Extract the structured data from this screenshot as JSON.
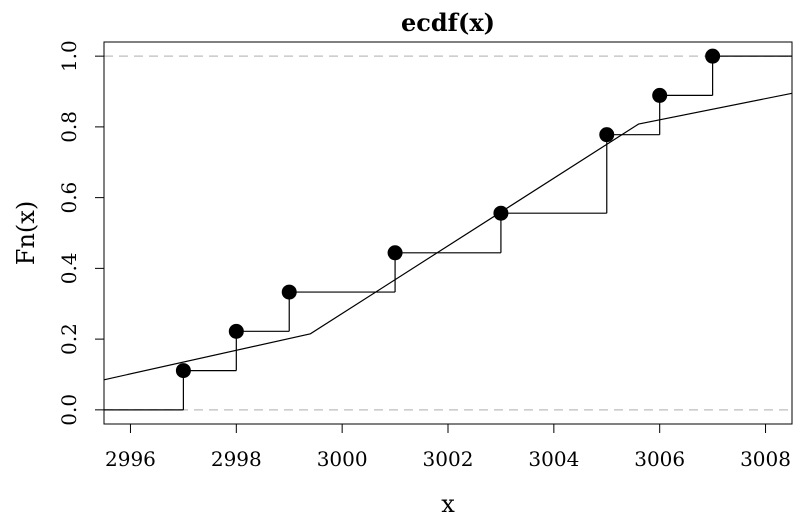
{
  "chart_data": {
    "type": "line",
    "title": "ecdf(x)",
    "xlabel": "x",
    "ylabel": "Fn(x)",
    "xlim": [
      2995.5,
      3008.5
    ],
    "ylim": [
      -0.04,
      1.04
    ],
    "x_ticks": [
      2996,
      2998,
      3000,
      3002,
      3004,
      3006,
      3008
    ],
    "y_ticks": [
      0.0,
      0.2,
      0.4,
      0.6,
      0.8,
      1.0
    ],
    "x_tick_labels": [
      "2996",
      "2998",
      "3000",
      "3002",
      "3004",
      "3006",
      "3008"
    ],
    "y_tick_labels": [
      "0.0",
      "0.2",
      "0.4",
      "0.6",
      "0.8",
      "1.0"
    ],
    "reference_lines_y": [
      0,
      1
    ],
    "series": [
      {
        "kind": "step",
        "x": [
          2997,
          2998,
          2999,
          3001,
          3003,
          3005,
          3006,
          3007
        ],
        "y": [
          0.111,
          0.222,
          0.333,
          0.444,
          0.556,
          0.778,
          0.889,
          1.0
        ]
      },
      {
        "kind": "line",
        "x": [
          2995.5,
          2999.4,
          3005.6,
          3008.5
        ],
        "y": [
          0.085,
          0.215,
          0.808,
          0.895
        ]
      }
    ],
    "grid": false,
    "legend": "none",
    "colors": {
      "line": "#000000",
      "reference": "#bebebe",
      "point": "#000000"
    }
  }
}
